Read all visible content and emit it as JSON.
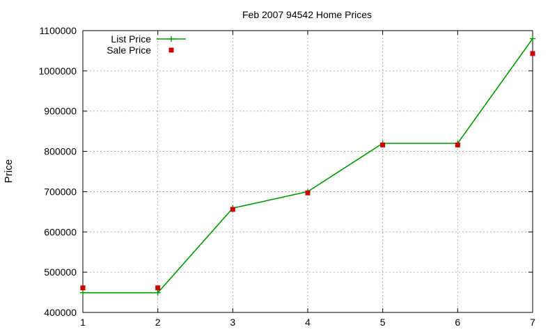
{
  "chart_data": {
    "type": "line",
    "title": "Feb 2007 94542 Home Prices",
    "xlabel": "",
    "ylabel": "Price",
    "x": [
      1,
      2,
      3,
      4,
      5,
      6,
      7
    ],
    "xlim": [
      1,
      7
    ],
    "ylim": [
      400000,
      1100000
    ],
    "xticks": [
      "1",
      "2",
      "3",
      "4",
      "5",
      "6",
      "7"
    ],
    "yticks": [
      "400000",
      "500000",
      "600000",
      "700000",
      "800000",
      "900000",
      "1000000",
      "1100000"
    ],
    "grid": true,
    "legend_position": "top-left",
    "series": [
      {
        "name": "List Price",
        "style": "line-plus",
        "color": "#009900",
        "values": [
          449000,
          449000,
          659000,
          700000,
          820000,
          820000,
          1080000
        ]
      },
      {
        "name": "Sale Price",
        "style": "square",
        "color": "#cc0000",
        "values": [
          461000,
          461000,
          656000,
          697000,
          816000,
          816000,
          1043000
        ]
      }
    ]
  }
}
